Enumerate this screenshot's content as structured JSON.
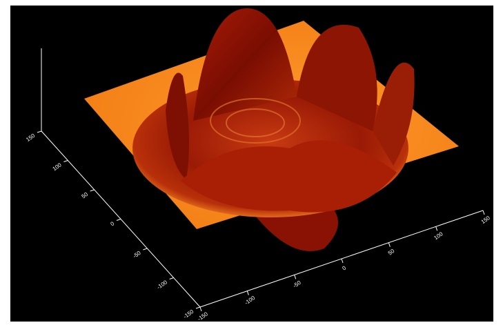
{
  "chart_data": {
    "type": "surface",
    "xlim": [
      -150,
      150
    ],
    "xticks": [
      -150,
      -100,
      -50,
      0,
      50,
      100,
      150
    ],
    "ylim": [
      -150,
      150
    ],
    "yticks": [
      -150,
      -100,
      -50,
      0,
      50,
      100,
      150
    ]
  }
}
